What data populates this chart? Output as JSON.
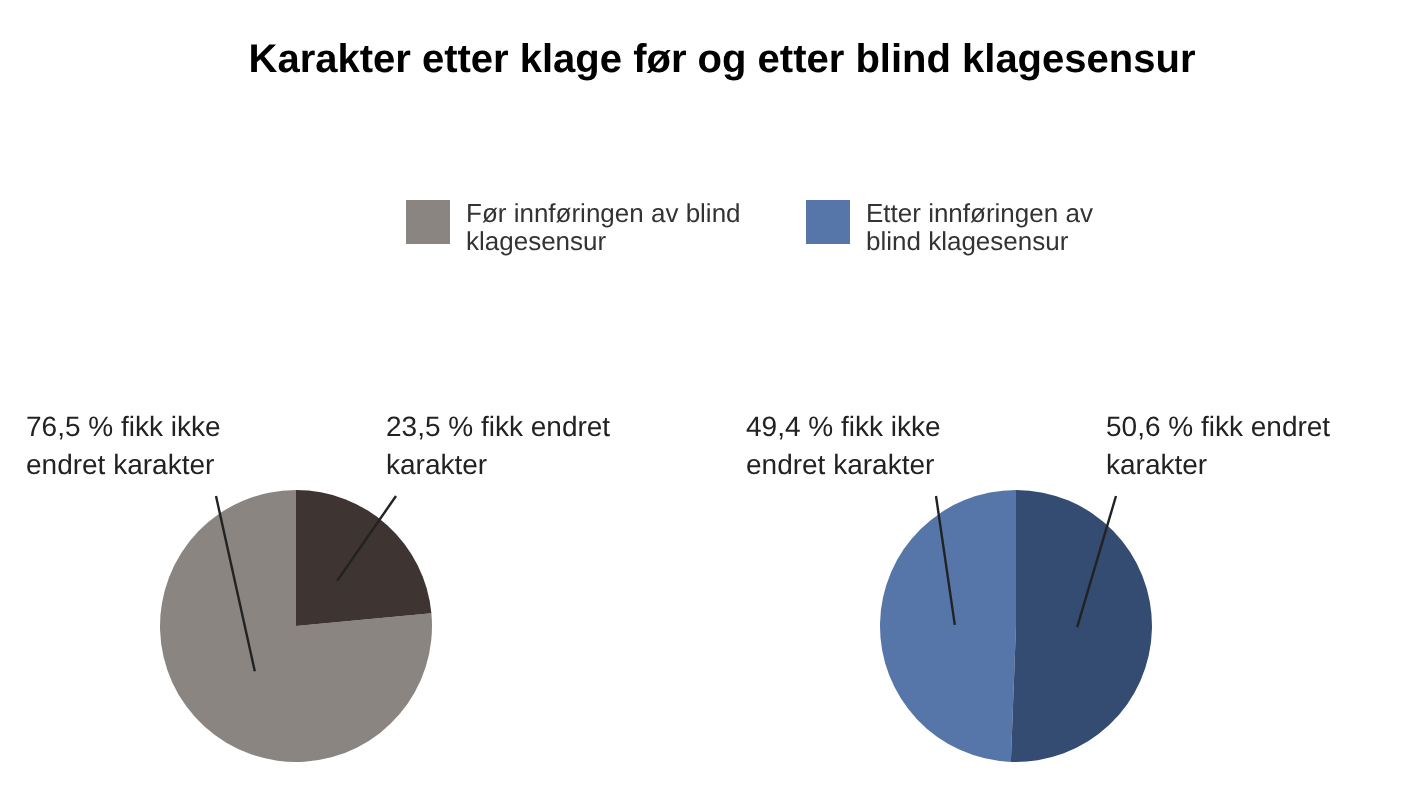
{
  "chart_data": [
    {
      "type": "pie",
      "title": "Karakter etter klage før og etter blind klagesensur",
      "legend": "top",
      "categories": [
        "fikk ikke endret karakter",
        "fikk endret karakter"
      ],
      "value_labels": [
        "76,5 %",
        "23,5 %"
      ],
      "colors": [
        "#8a8580",
        "#3e3532"
      ],
      "series": [
        {
          "name": "Før innføringen av blind klagesensur",
          "color": "#8a8580",
          "values": [
            76.5,
            23.5
          ]
        }
      ]
    },
    {
      "type": "pie",
      "legend": "top",
      "categories": [
        "fikk ikke endret karakter",
        "fikk endret karakter"
      ],
      "value_labels": [
        "49,4 %",
        "50,6 %"
      ],
      "colors": [
        "#5676aa",
        "#344b72"
      ],
      "series": [
        {
          "name": "Etter innføringen av blind klagesensur",
          "color": "#5676aa",
          "values": [
            49.4,
            50.6
          ]
        }
      ]
    }
  ]
}
